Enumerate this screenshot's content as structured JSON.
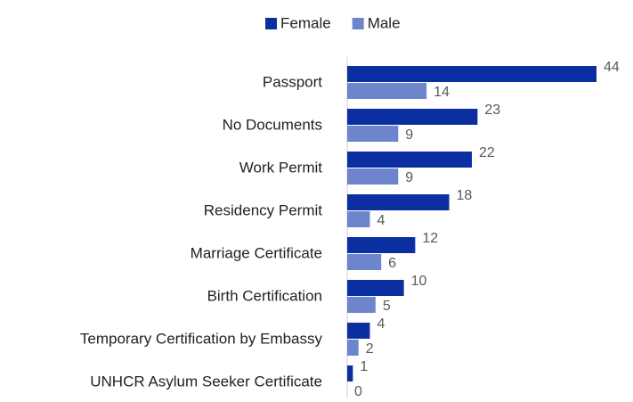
{
  "chart_data": {
    "type": "bar",
    "orientation": "horizontal",
    "categories": [
      "Passport",
      "No Documents",
      "Work Permit",
      "Residency Permit",
      "Marriage Certificate",
      "Birth Certification",
      "Temporary Certification by Embassy",
      "UNHCR Asylum Seeker Certificate"
    ],
    "series": [
      {
        "name": "Female",
        "color": "#0b2fa0",
        "values": [
          44,
          23,
          22,
          18,
          12,
          10,
          4,
          1
        ]
      },
      {
        "name": "Male",
        "color": "#6c85cc",
        "values": [
          14,
          9,
          9,
          4,
          6,
          5,
          2,
          0
        ]
      }
    ],
    "legend": "top"
  }
}
